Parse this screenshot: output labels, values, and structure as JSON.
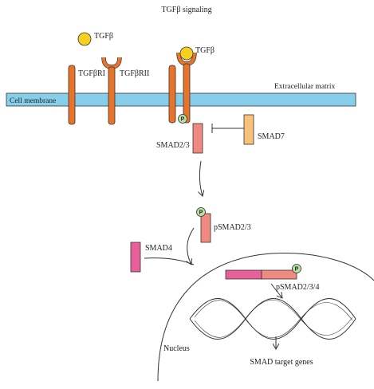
{
  "diagram": {
    "title": "TGFβ signaling",
    "labels": {
      "tgfb_free": "TGFβ",
      "tgfb_bound": "TGFβ",
      "receptor1": "TGFβRI",
      "receptor2": "TGFβRII",
      "membrane": "Cell membrane",
      "extracellular": "Extracellular matrix",
      "smad23": "SMAD2/3",
      "smad7": "SMAD7",
      "psmad23": "pSMAD2/3",
      "smad4": "SMAD4",
      "psmad234": "pSMAD2/3/4",
      "nucleus": "Nucleus",
      "target_genes": "SMAD target genes",
      "phospho": "P"
    },
    "colors": {
      "membrane": "#87ceeb",
      "receptor": "#e8732a",
      "ligand": "#f5d020",
      "smad23": "#f08a80",
      "smad7": "#f8c27a",
      "smad4": "#e8609a",
      "phospho": "#b9e0a5"
    }
  }
}
